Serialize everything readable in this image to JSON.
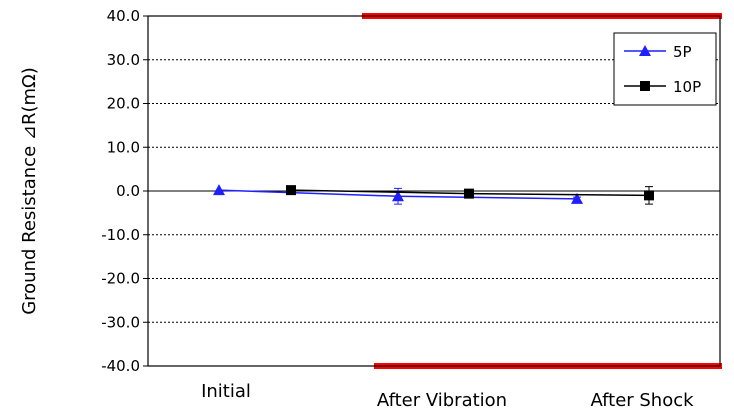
{
  "chart_data": {
    "type": "line",
    "title": "",
    "xlabel": "",
    "ylabel": "Ground Resistance ⊿R(mΩ)",
    "ylim": [
      -40,
      40
    ],
    "yticks": [
      40,
      30,
      20,
      10,
      0,
      -10,
      -20,
      -30,
      -40
    ],
    "ytick_labels": [
      "40.0",
      "30.0",
      "20.0",
      "10.0",
      "0.0",
      "-10.0",
      "-20.0",
      "-30.0",
      "-40.0"
    ],
    "categories": [
      "Initial",
      "After Vibration",
      "After Shock"
    ],
    "grid": "horizontal dotted",
    "legend_position": "top-right",
    "series": [
      {
        "name": "5P",
        "color": "#1f1fff",
        "marker": "triangle",
        "values": [
          0.2,
          -1.2,
          -1.8
        ],
        "error": [
          0.2,
          1.8,
          0.4
        ]
      },
      {
        "name": "10P",
        "color": "#000000",
        "marker": "square",
        "values": [
          0.2,
          -0.6,
          -1.0
        ],
        "error": [
          0.2,
          0.6,
          2.0
        ]
      }
    ],
    "limit_lines": [
      {
        "value": 40,
        "color": "#ff0000",
        "span": "After Vibration to end"
      },
      {
        "value": -40,
        "color": "#ff0000",
        "span": "After Vibration to end"
      }
    ]
  }
}
